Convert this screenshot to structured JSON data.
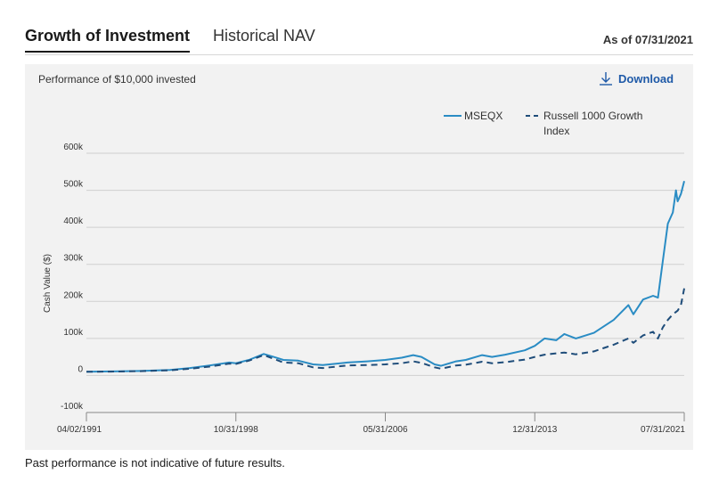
{
  "tabs": [
    {
      "label": "Growth of Investment",
      "active": true
    },
    {
      "label": "Historical NAV",
      "active": false
    }
  ],
  "as_of": "As of 07/31/2021",
  "subtitle": "Performance of $10,000 invested",
  "download_label": "Download",
  "footnote": "Past performance is not indicative of future results.",
  "chart_data": {
    "type": "line",
    "ylabel": "Cash Value ($)",
    "ylim": [
      -100000,
      600000
    ],
    "y_ticks": [
      {
        "value": 600000,
        "label": "600k"
      },
      {
        "value": 500000,
        "label": "500k"
      },
      {
        "value": 400000,
        "label": "400k"
      },
      {
        "value": 300000,
        "label": "300k"
      },
      {
        "value": 200000,
        "label": "200k"
      },
      {
        "value": 100000,
        "label": "100k"
      },
      {
        "value": 0,
        "label": "0"
      },
      {
        "value": -100000,
        "label": "-100k"
      }
    ],
    "x_range": [
      "1991-04-02",
      "2021-07-31"
    ],
    "x_ticks": [
      "04/02/1991",
      "10/31/1998",
      "05/31/2006",
      "12/31/2013",
      "07/31/2021"
    ],
    "legend_position": "top-right",
    "grid": true,
    "series": [
      {
        "name": "MSEQX",
        "color": "#2a8cc4",
        "dash": "solid",
        "points": [
          [
            "1991-04-02",
            10000
          ],
          [
            "1992-06-30",
            11000
          ],
          [
            "1993-12-31",
            12000
          ],
          [
            "1995-06-30",
            15000
          ],
          [
            "1996-06-30",
            20000
          ],
          [
            "1997-06-30",
            27000
          ],
          [
            "1998-06-30",
            35000
          ],
          [
            "1998-10-31",
            33000
          ],
          [
            "1999-06-30",
            42000
          ],
          [
            "2000-03-31",
            58000
          ],
          [
            "2000-09-30",
            50000
          ],
          [
            "2001-03-31",
            42000
          ],
          [
            "2001-12-31",
            40000
          ],
          [
            "2002-09-30",
            30000
          ],
          [
            "2003-03-31",
            28000
          ],
          [
            "2004-06-30",
            35000
          ],
          [
            "2005-06-30",
            38000
          ],
          [
            "2006-05-31",
            42000
          ],
          [
            "2007-03-31",
            48000
          ],
          [
            "2007-10-31",
            55000
          ],
          [
            "2008-03-31",
            50000
          ],
          [
            "2008-11-30",
            30000
          ],
          [
            "2009-03-31",
            26000
          ],
          [
            "2009-12-31",
            38000
          ],
          [
            "2010-06-30",
            42000
          ],
          [
            "2011-04-30",
            55000
          ],
          [
            "2011-10-31",
            50000
          ],
          [
            "2012-06-30",
            56000
          ],
          [
            "2013-06-30",
            68000
          ],
          [
            "2013-12-31",
            80000
          ],
          [
            "2014-06-30",
            100000
          ],
          [
            "2015-01-31",
            95000
          ],
          [
            "2015-06-30",
            112000
          ],
          [
            "2016-01-31",
            100000
          ],
          [
            "2016-12-31",
            115000
          ],
          [
            "2017-12-31",
            150000
          ],
          [
            "2018-09-30",
            190000
          ],
          [
            "2018-12-31",
            165000
          ],
          [
            "2019-06-30",
            205000
          ],
          [
            "2019-12-31",
            215000
          ],
          [
            "2020-03-31",
            210000
          ],
          [
            "2020-06-30",
            310000
          ],
          [
            "2020-09-30",
            410000
          ],
          [
            "2020-12-31",
            440000
          ],
          [
            "2021-02-28",
            500000
          ],
          [
            "2021-03-31",
            470000
          ],
          [
            "2021-05-31",
            490000
          ],
          [
            "2021-07-31",
            525000
          ]
        ]
      },
      {
        "name": "Russell 1000 Growth Index",
        "color": "#1f4d7a",
        "dash": "dashed",
        "points": [
          [
            "1991-04-02",
            10000
          ],
          [
            "1992-06-30",
            10500
          ],
          [
            "1993-12-31",
            11500
          ],
          [
            "1995-06-30",
            14000
          ],
          [
            "1996-06-30",
            18000
          ],
          [
            "1997-06-30",
            24000
          ],
          [
            "1998-06-30",
            32000
          ],
          [
            "1998-10-31",
            31000
          ],
          [
            "1999-06-30",
            40000
          ],
          [
            "2000-03-31",
            55000
          ],
          [
            "2000-09-30",
            45000
          ],
          [
            "2001-03-31",
            35000
          ],
          [
            "2001-12-31",
            33000
          ],
          [
            "2002-09-30",
            22000
          ],
          [
            "2003-03-31",
            20000
          ],
          [
            "2004-06-30",
            27000
          ],
          [
            "2005-06-30",
            28000
          ],
          [
            "2006-05-31",
            30000
          ],
          [
            "2007-03-31",
            33000
          ],
          [
            "2007-10-31",
            38000
          ],
          [
            "2008-03-31",
            34000
          ],
          [
            "2008-11-30",
            22000
          ],
          [
            "2009-03-31",
            18000
          ],
          [
            "2009-12-31",
            27000
          ],
          [
            "2010-06-30",
            29000
          ],
          [
            "2011-04-30",
            37000
          ],
          [
            "2011-10-31",
            33000
          ],
          [
            "2012-06-30",
            36000
          ],
          [
            "2013-06-30",
            43000
          ],
          [
            "2013-12-31",
            50000
          ],
          [
            "2014-06-30",
            56000
          ],
          [
            "2015-06-30",
            62000
          ],
          [
            "2016-01-31",
            57000
          ],
          [
            "2016-12-31",
            65000
          ],
          [
            "2017-12-31",
            83000
          ],
          [
            "2018-09-30",
            100000
          ],
          [
            "2018-12-31",
            88000
          ],
          [
            "2019-06-30",
            108000
          ],
          [
            "2019-12-31",
            118000
          ],
          [
            "2020-03-31",
            100000
          ],
          [
            "2020-06-30",
            130000
          ],
          [
            "2020-09-30",
            150000
          ],
          [
            "2020-12-31",
            165000
          ],
          [
            "2021-03-31",
            175000
          ],
          [
            "2021-05-31",
            190000
          ],
          [
            "2021-07-31",
            235000
          ]
        ]
      }
    ]
  }
}
